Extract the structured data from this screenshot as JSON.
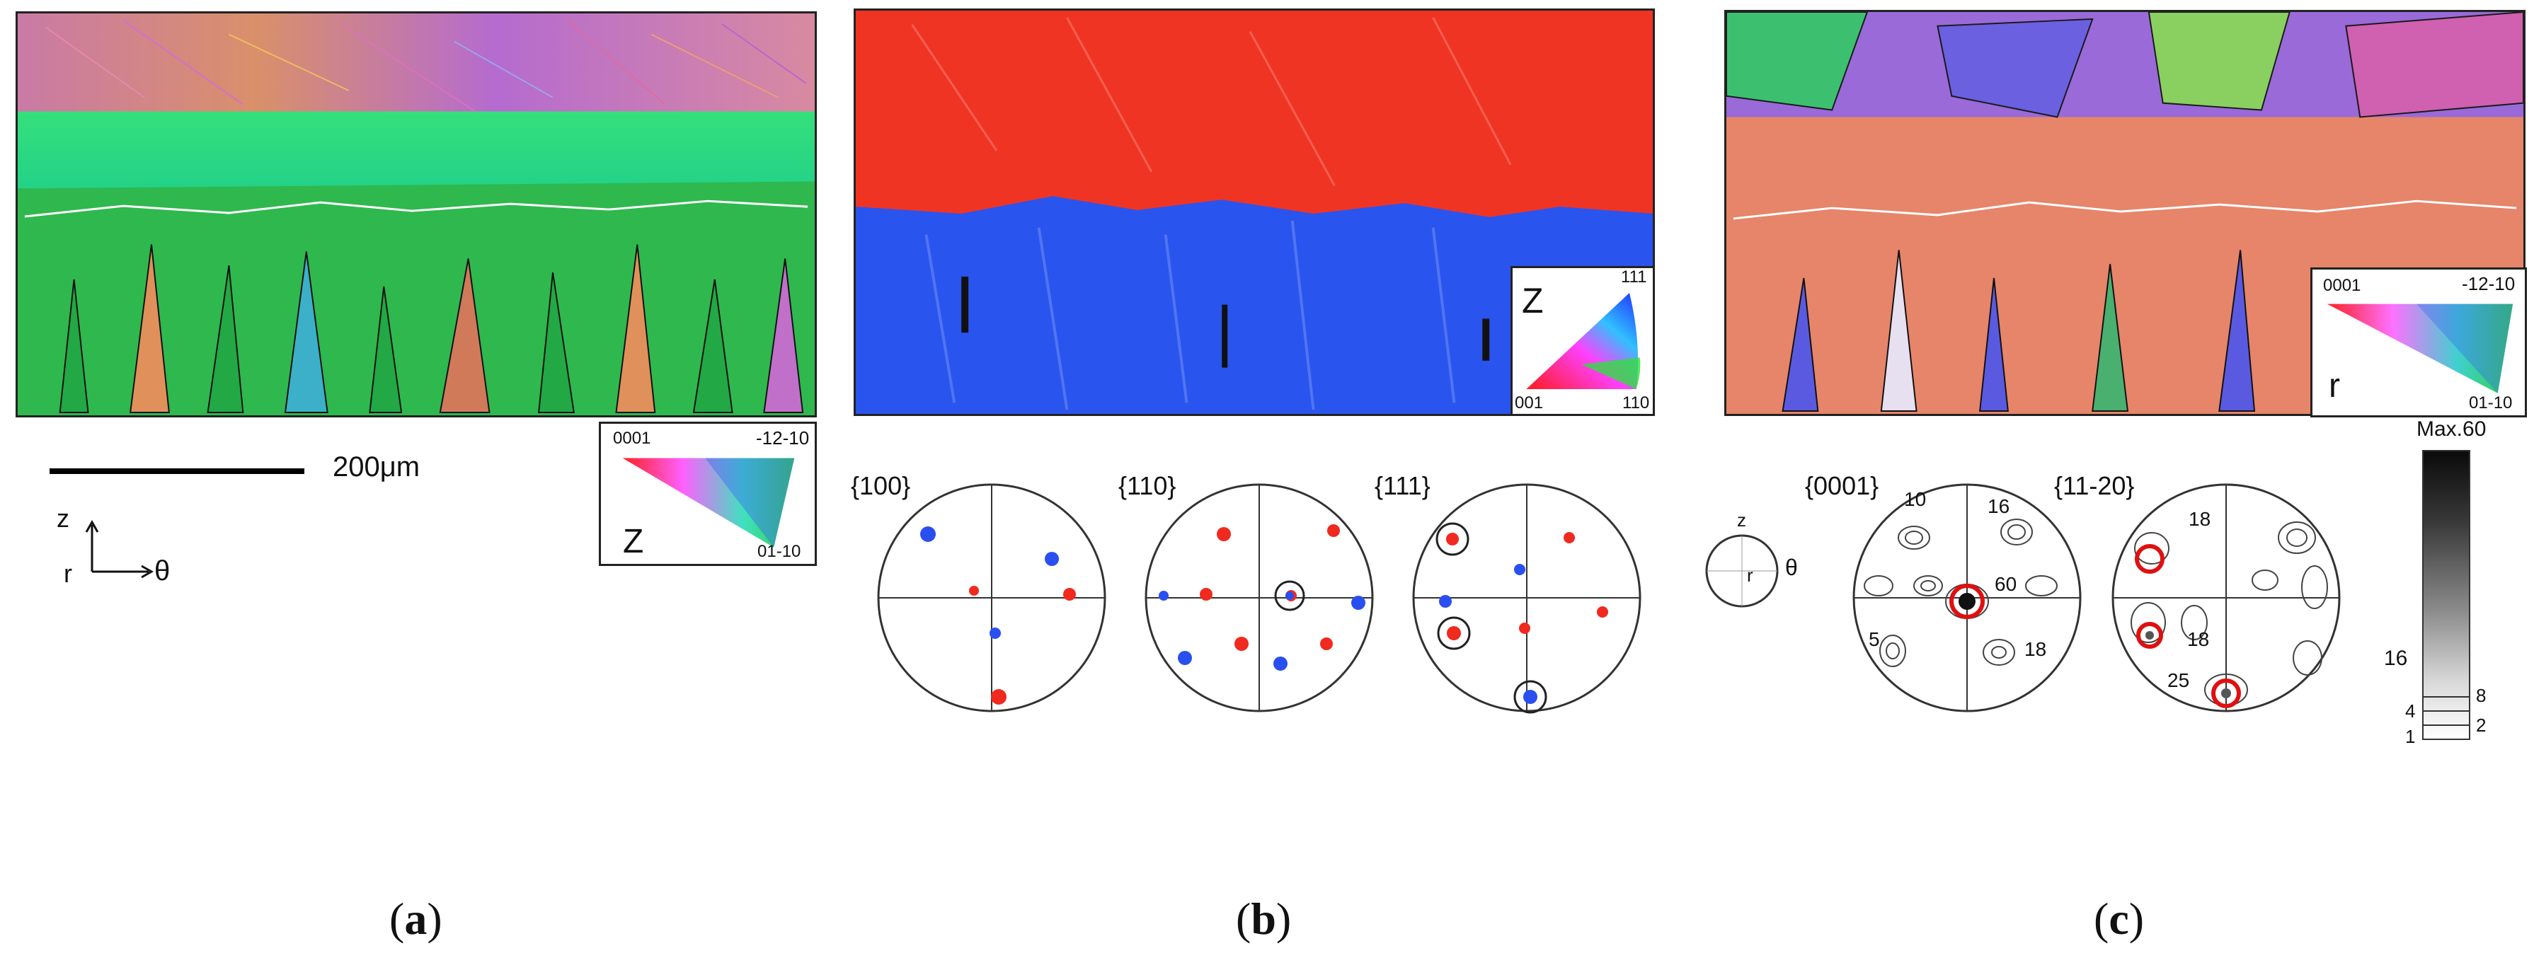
{
  "panel_a": {
    "letter_open": "(",
    "letter": "a",
    "letter_close": ")",
    "scale_bar_label": "200μm",
    "axes": {
      "vertical": "z",
      "horizontal_start": "r",
      "horizontal_end": "θ"
    },
    "legend": {
      "top_left": "0001",
      "top_right": "-12-10",
      "bottom_right": "01-10",
      "axis": "Z"
    }
  },
  "panel_b": {
    "letter_open": "(",
    "letter": "b",
    "letter_close": ")",
    "legend": {
      "top_right": "111",
      "bottom_left": "001",
      "bottom_right": "110",
      "axis": "Z"
    },
    "pole_figures": [
      "{100}",
      "{110}",
      "{111}"
    ]
  },
  "panel_c": {
    "letter_open": "(",
    "letter": "c",
    "letter_close": ")",
    "legend": {
      "top_left": "0001",
      "top_right": "-12-10",
      "bottom_right": "01-10",
      "axis": "r"
    },
    "frame": {
      "z": "z",
      "r": "r",
      "theta": "θ"
    },
    "pole_figures": [
      "{0001}",
      "{11-20}"
    ],
    "pf1_labels": {
      "a": "10",
      "b": "16",
      "c": "60",
      "d": "5",
      "e": "18"
    },
    "pf2_labels": {
      "a": "18",
      "b": "18",
      "c": "25"
    },
    "colorbar": {
      "max": "Max.60",
      "l16": "16",
      "l8": "8",
      "l4": "4",
      "l2": "2",
      "l1": "1"
    }
  },
  "colors": {
    "hcp_green": "#2fd86a",
    "cubic_red": "#f02a1e",
    "cubic_blue": "#2a4ff0",
    "hcp_orange": "#e67a5a",
    "marker_red": "#e01010"
  }
}
